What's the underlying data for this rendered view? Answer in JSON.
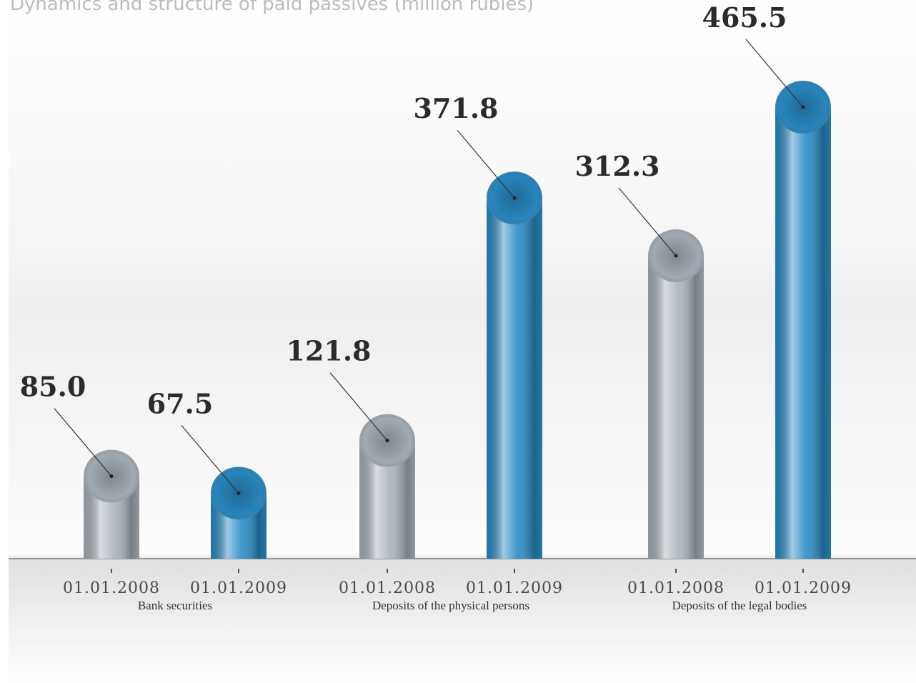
{
  "chart_data": {
    "type": "bar",
    "title": "Dynamics and structure of paid passives (million rubles)",
    "categories": [
      "Bank securities",
      "Deposits of the physical persons",
      "Deposits of the legal bodies"
    ],
    "series": [
      {
        "name": "01.01.2008",
        "color": "#aab3bc",
        "values": [
          85.0,
          121.8,
          312.3
        ],
        "value_labels": [
          "85.0",
          "121.8",
          "312.3"
        ]
      },
      {
        "name": "01.01.2009",
        "color": "#2a8cc6",
        "values": [
          67.5,
          371.8,
          465.5
        ]
      }
    ]
  }
}
